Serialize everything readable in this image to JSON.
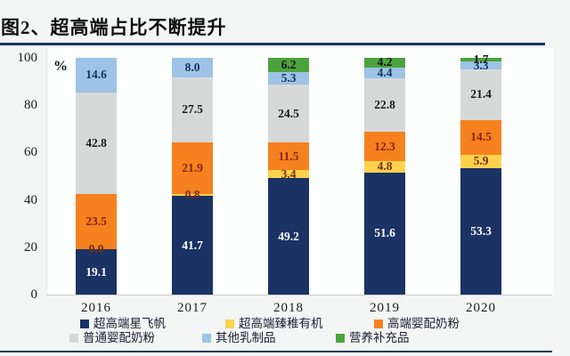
{
  "title": "图2、超高端占比不断提升",
  "axis": {
    "unit": "%"
  },
  "chart_data": {
    "type": "bar",
    "stacked": true,
    "title": "超高端占比不断提升",
    "xlabel": "",
    "ylabel": "%",
    "ylim": [
      0,
      100
    ],
    "yticks": [
      0,
      20,
      40,
      60,
      80,
      100
    ],
    "grid": false,
    "legend_position": "bottom",
    "categories": [
      "2016",
      "2017",
      "2018",
      "2019",
      "2020"
    ],
    "series": [
      {
        "name": "超高端星飞帆",
        "color": "#1a3264",
        "label_color": "#ffffff",
        "values": [
          19.1,
          41.7,
          49.2,
          51.6,
          53.3
        ]
      },
      {
        "name": "超高端臻稚有机",
        "color": "#ffd24d",
        "label_color": "#7d2a10",
        "values": [
          0.0,
          0.8,
          3.4,
          4.8,
          5.9
        ]
      },
      {
        "name": "高端婴配奶粉",
        "color": "#f5821f",
        "label_color": "#8c2211",
        "values": [
          23.5,
          21.9,
          11.5,
          12.3,
          14.5
        ]
      },
      {
        "name": "普通婴配奶粉",
        "color": "#d7d9d8",
        "label_color": "#1a1a1a",
        "values": [
          42.8,
          27.5,
          24.5,
          22.8,
          21.4
        ]
      },
      {
        "name": "其他乳制品",
        "color": "#9dc3e6",
        "label_color": "#17365d",
        "values": [
          14.6,
          8.0,
          5.3,
          4.4,
          3.3
        ]
      },
      {
        "name": "营养补充品",
        "color": "#4ba43b",
        "label_color": "#121212",
        "values": [
          null,
          null,
          6.2,
          4.2,
          1.7
        ]
      }
    ]
  }
}
